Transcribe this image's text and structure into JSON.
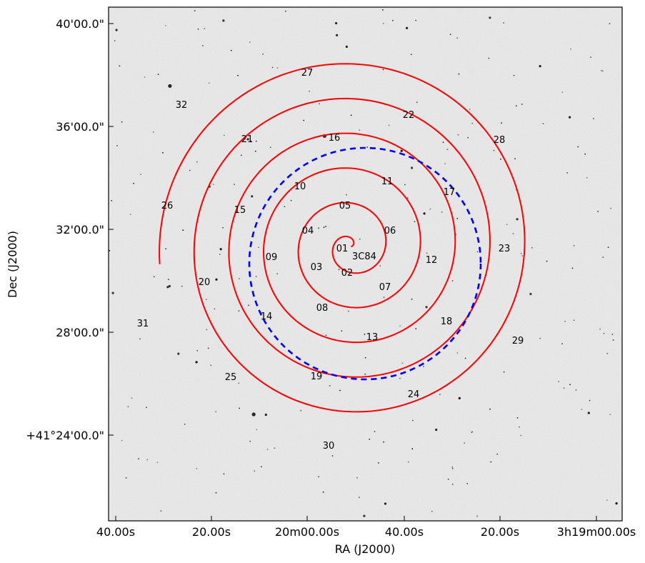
{
  "chart_data": {
    "type": "scatter",
    "title": "",
    "xlabel": "RA (J2000)",
    "ylabel": "Dec (J2000)",
    "x_ticks": [
      "40.00s",
      "20.00s",
      "20m00.00s",
      "40.00s",
      "20.00s",
      "3h19m00.00s"
    ],
    "y_ticks": [
      "40'00.0\"",
      "36'00.0\"",
      "32'00.0\"",
      "28'00.0\"",
      "+41°24'00.0\""
    ],
    "background": "grayscale sky survey image (star field)",
    "grid": false,
    "target": {
      "name": "3C84"
    },
    "series": [
      {
        "style": "solid",
        "color": "#ff0000",
        "shape": "archimedean spiral"
      },
      {
        "style": "dashed",
        "color": "#0000ff",
        "shape": "circle"
      }
    ],
    "spiral_labels": [
      "01",
      "02",
      "03",
      "04",
      "05",
      "06",
      "07",
      "08",
      "09",
      "10",
      "11",
      "12",
      "13",
      "14",
      "15",
      "16",
      "17",
      "18",
      "19",
      "20",
      "21",
      "22",
      "23",
      "24",
      "25",
      "26",
      "27",
      "28",
      "29",
      "30",
      "31",
      "32"
    ]
  },
  "colors": {
    "spiral": "#ff0000",
    "circle": "#0000ff",
    "frame": "#000000",
    "sky": "#eeeeee"
  }
}
